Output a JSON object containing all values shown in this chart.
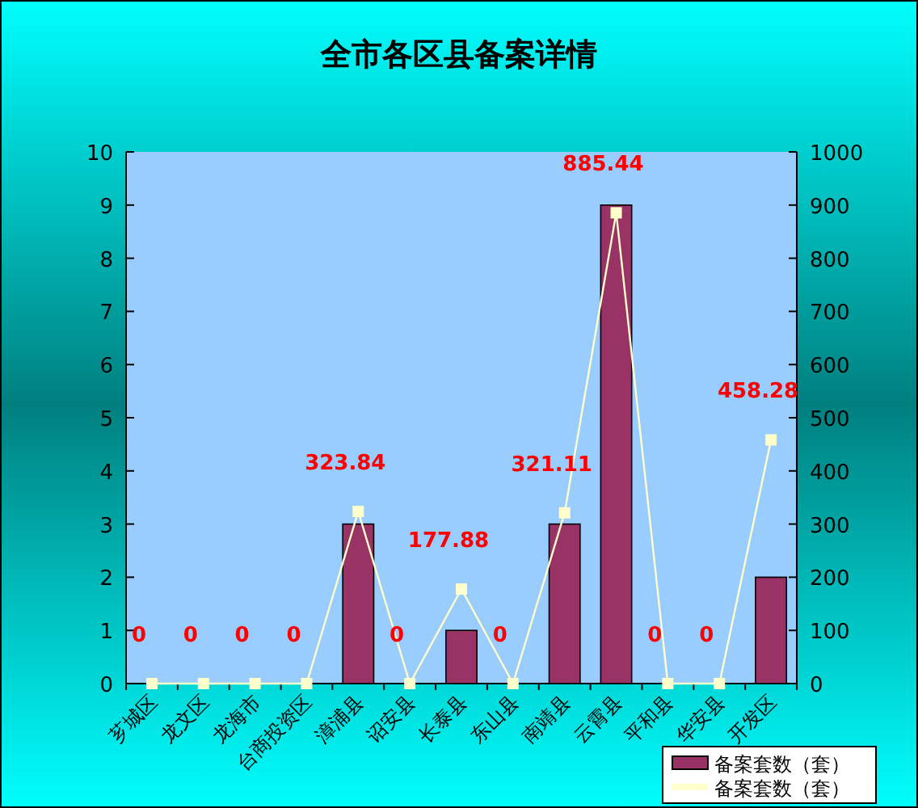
{
  "chart_data": {
    "type": "bar",
    "title": "全市各区县备案详情",
    "categories": [
      "芗城区",
      "龙文区",
      "龙海市",
      "台商投资区",
      "漳浦县",
      "诏安县",
      "长泰县",
      "东山县",
      "南靖县",
      "云霄县",
      "平和县",
      "华安县",
      "开发区"
    ],
    "series": [
      {
        "name": "备案套数（套）",
        "color": "#993366",
        "values": [
          0,
          0,
          0,
          0,
          3,
          0,
          1,
          0,
          3,
          9,
          0,
          0,
          2
        ]
      },
      {
        "name": "备案套数（套）",
        "type": "line",
        "axis": "y2",
        "color": "#ffffcc",
        "marker": "square",
        "values": [
          0,
          0,
          0,
          0,
          323.84,
          0,
          177.88,
          0,
          321.11,
          885.44,
          0,
          0,
          458.28
        ],
        "value_labels": [
          "0",
          "0",
          "0",
          "0",
          "323.84",
          "0",
          "177.88",
          "0",
          "321.11",
          "885.44",
          "0",
          "0",
          "458.28"
        ]
      }
    ],
    "ylim": [
      0,
      10
    ],
    "yticks": [
      0,
      1,
      2,
      3,
      4,
      5,
      6,
      7,
      8,
      9,
      10
    ],
    "y2lim": [
      0,
      1000
    ],
    "y2ticks": [
      0,
      100,
      200,
      300,
      400,
      500,
      600,
      700,
      800,
      900,
      1000
    ],
    "grid": false,
    "legend": "bottom right"
  }
}
